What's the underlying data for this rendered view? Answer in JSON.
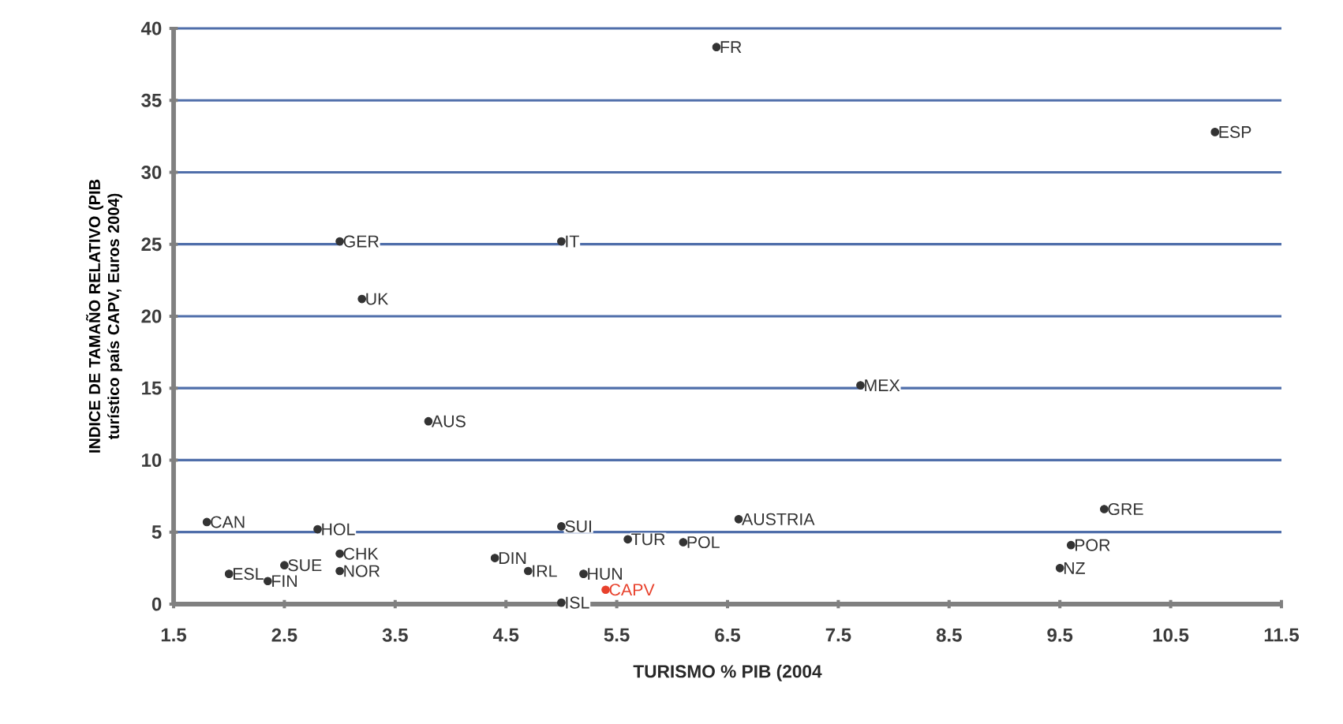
{
  "chart_data": {
    "type": "scatter",
    "xlabel": "TURISMO % PIB (2004",
    "ylabel": "INDICE DE TAMAÑO RELATIVO (PIB turístico país CAPV, Euros 2004)",
    "xlim": [
      1.5,
      11.5
    ],
    "xticks": [
      1.5,
      2.5,
      3.5,
      4.5,
      5.5,
      6.5,
      7.5,
      8.5,
      9.5,
      10.5,
      11.5
    ],
    "ylim": [
      0,
      40
    ],
    "yticks": [
      0,
      5,
      10,
      15,
      20,
      25,
      30,
      35,
      40
    ],
    "grid": "y",
    "marker": "circle",
    "series": [
      {
        "name": "FR",
        "color": "#333333",
        "x": [
          6.4
        ],
        "values": [
          38.7
        ]
      },
      {
        "name": "ESP",
        "color": "#333333",
        "x": [
          10.9
        ],
        "values": [
          32.8
        ]
      },
      {
        "name": "GER",
        "color": "#333333",
        "x": [
          3.0
        ],
        "values": [
          25.2
        ]
      },
      {
        "name": "IT",
        "color": "#333333",
        "x": [
          5.0
        ],
        "values": [
          25.2
        ]
      },
      {
        "name": "UK",
        "color": "#333333",
        "x": [
          3.2
        ],
        "values": [
          21.2
        ]
      },
      {
        "name": "MEX",
        "color": "#333333",
        "x": [
          7.7
        ],
        "values": [
          15.2
        ]
      },
      {
        "name": "AUS",
        "color": "#333333",
        "x": [
          3.8
        ],
        "values": [
          12.7
        ]
      },
      {
        "name": "CAN",
        "color": "#333333",
        "x": [
          1.8
        ],
        "values": [
          5.7
        ]
      },
      {
        "name": "HOL",
        "color": "#333333",
        "x": [
          2.8
        ],
        "values": [
          5.2
        ]
      },
      {
        "name": "SUI",
        "color": "#333333",
        "x": [
          5.0
        ],
        "values": [
          5.4
        ]
      },
      {
        "name": "TUR",
        "color": "#333333",
        "x": [
          5.6
        ],
        "values": [
          4.5
        ]
      },
      {
        "name": "POL",
        "color": "#333333",
        "x": [
          6.1
        ],
        "values": [
          4.3
        ]
      },
      {
        "name": "AUSTRIA",
        "color": "#333333",
        "x": [
          6.6
        ],
        "values": [
          5.9
        ]
      },
      {
        "name": "GRE",
        "color": "#333333",
        "x": [
          9.9
        ],
        "values": [
          6.6
        ]
      },
      {
        "name": "POR",
        "color": "#333333",
        "x": [
          9.6
        ],
        "values": [
          4.1
        ]
      },
      {
        "name": "NZ",
        "color": "#333333",
        "x": [
          9.5
        ],
        "values": [
          2.5
        ]
      },
      {
        "name": "ESL",
        "color": "#333333",
        "x": [
          2.0
        ],
        "values": [
          2.1
        ]
      },
      {
        "name": "FIN",
        "color": "#333333",
        "x": [
          2.35
        ],
        "values": [
          1.6
        ]
      },
      {
        "name": "SUE",
        "color": "#333333",
        "x": [
          2.5
        ],
        "values": [
          2.7
        ]
      },
      {
        "name": "CHK",
        "color": "#333333",
        "x": [
          3.0
        ],
        "values": [
          3.5
        ]
      },
      {
        "name": "NOR",
        "color": "#333333",
        "x": [
          3.0
        ],
        "values": [
          2.3
        ]
      },
      {
        "name": "DIN",
        "color": "#333333",
        "x": [
          4.4
        ],
        "values": [
          3.2
        ]
      },
      {
        "name": "IRL",
        "color": "#333333",
        "x": [
          4.7
        ],
        "values": [
          2.3
        ]
      },
      {
        "name": "HUN",
        "color": "#333333",
        "x": [
          5.2
        ],
        "values": [
          2.1
        ]
      },
      {
        "name": "ISL",
        "color": "#333333",
        "x": [
          5.0
        ],
        "values": [
          0.1
        ]
      },
      {
        "name": "CAPV",
        "color": "#e8412c",
        "x": [
          5.4
        ],
        "values": [
          1.0
        ]
      }
    ]
  }
}
